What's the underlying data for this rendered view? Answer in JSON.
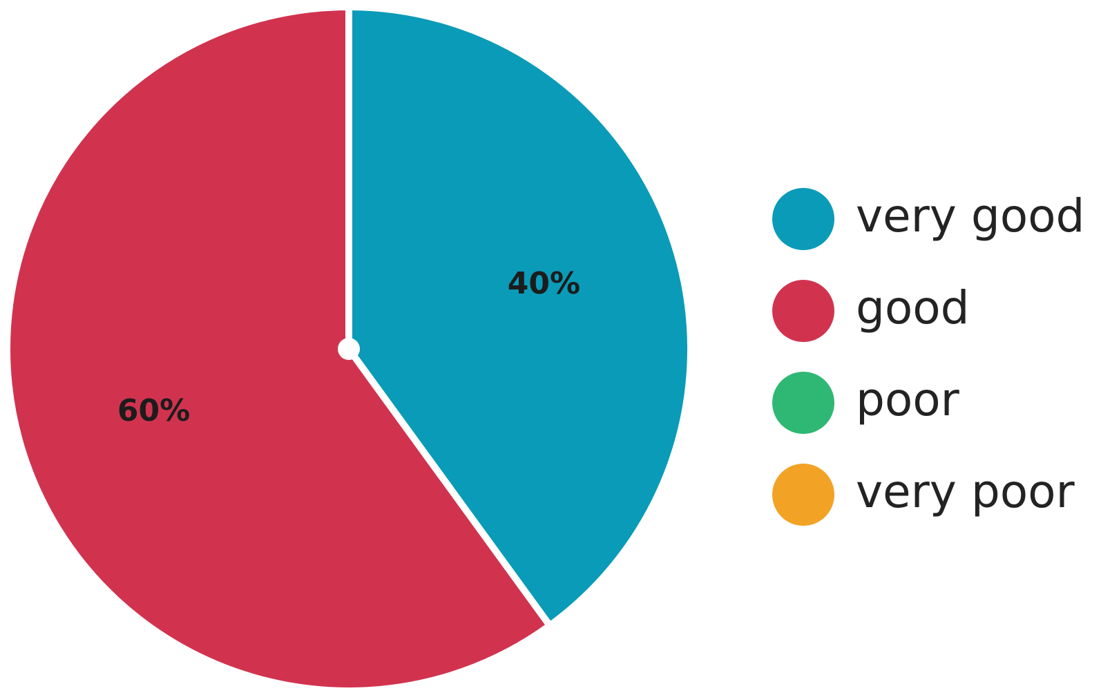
{
  "chart_data": {
    "type": "pie",
    "slices": [
      {
        "category": "very good",
        "value": 40,
        "label": "40%",
        "color": "#0a9bb8"
      },
      {
        "category": "good",
        "value": 60,
        "label": "60%",
        "color": "#d1334f"
      },
      {
        "category": "poor",
        "value": 0,
        "label": "",
        "color": "#2fb873"
      },
      {
        "category": "very poor",
        "value": 0,
        "label": "",
        "color": "#f2a325"
      }
    ],
    "legend": {
      "placement": "right",
      "entries": [
        {
          "label": "very good",
          "color": "#0a9bb8"
        },
        {
          "label": "good",
          "color": "#d1334f"
        },
        {
          "label": "poor",
          "color": "#2fb873"
        },
        {
          "label": "very poor",
          "color": "#f2a325"
        }
      ]
    },
    "start_angle_deg": 0,
    "direction": "clockwise"
  }
}
